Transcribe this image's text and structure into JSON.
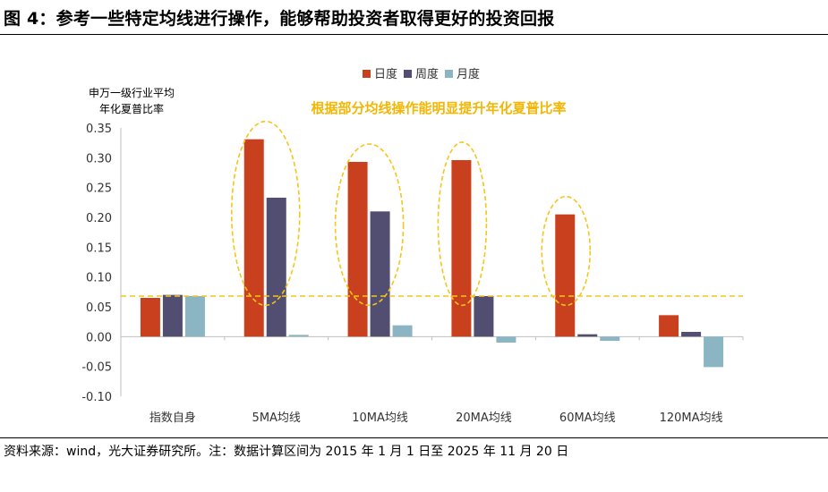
{
  "title": "图 4：参考一些特定均线进行操作，能够帮助投资者取得更好的投资回报",
  "source": "资料来源：wind，光大证券研究所。注：数据计算区间为 2015 年 1 月 1 日至 2025 年 11 月 20 日",
  "colors": {
    "daily": "#c9401f",
    "weekly": "#524e71",
    "monthly": "#8cb5c4",
    "highlight": "#f5c518",
    "annotation": "#f2b705",
    "axis_text": "#333333"
  },
  "chart_data": {
    "type": "bar",
    "ylabel_lines": [
      "申万一级行业平均",
      "年化夏普比率"
    ],
    "categories": [
      "指数自身",
      "5MA均线",
      "10MA均线",
      "20MA均线",
      "60MA均线",
      "120MA均线"
    ],
    "series": [
      {
        "name": "日度",
        "values": [
          0.065,
          0.331,
          0.293,
          0.296,
          0.205,
          0.036
        ]
      },
      {
        "name": "周度",
        "values": [
          0.07,
          0.233,
          0.21,
          0.068,
          0.004,
          0.008
        ]
      },
      {
        "name": "月度",
        "values": [
          0.068,
          0.003,
          0.019,
          -0.01,
          -0.007,
          -0.051
        ]
      }
    ],
    "ylim": [
      -0.1,
      0.35
    ],
    "yticks": [
      "0.35",
      "0.30",
      "0.25",
      "0.20",
      "0.15",
      "0.10",
      "0.05",
      "0.00",
      "-0.05",
      "-0.10"
    ],
    "ytick_values": [
      0.35,
      0.3,
      0.25,
      0.2,
      0.15,
      0.1,
      0.05,
      0.0,
      -0.05,
      -0.1
    ],
    "reference_line": 0.068,
    "annotation": "根据部分均线操作能明显提升年化夏普比率",
    "highlighted_categories": [
      1,
      2,
      3,
      4
    ],
    "legend_position": "top-center",
    "grid": false
  }
}
